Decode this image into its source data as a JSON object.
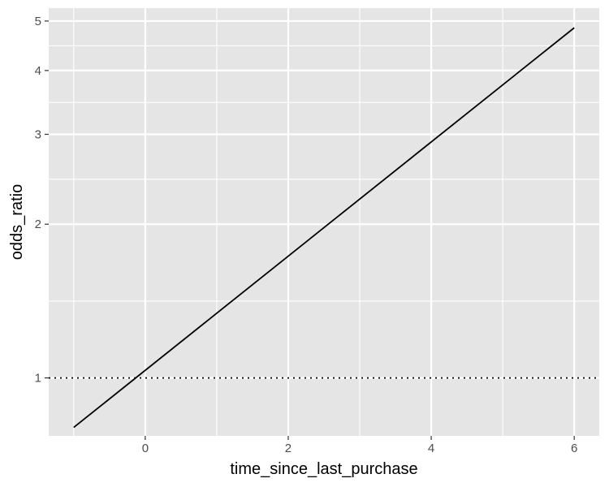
{
  "chart_data": {
    "type": "line",
    "title": "",
    "xlabel": "time_since_last_purchase",
    "ylabel": "odds_ratio",
    "x_scale": "linear",
    "y_scale": "log",
    "xlim": [
      -1.35,
      6.35
    ],
    "ylim": [
      0.77,
      5.3
    ],
    "x_ticks": [
      0,
      2,
      4,
      6
    ],
    "y_ticks": [
      1,
      2,
      3,
      4,
      5
    ],
    "grid": true,
    "legend": "none",
    "series": [
      {
        "x": [
          -1,
          6
        ],
        "y": [
          0.8,
          4.85
        ]
      }
    ],
    "reference_lines": [
      {
        "axis": "y",
        "value": 1,
        "style": "dotted"
      }
    ],
    "colors": {
      "panel_background": "#e5e5e5",
      "grid": "#ffffff",
      "line": "#000000"
    }
  }
}
